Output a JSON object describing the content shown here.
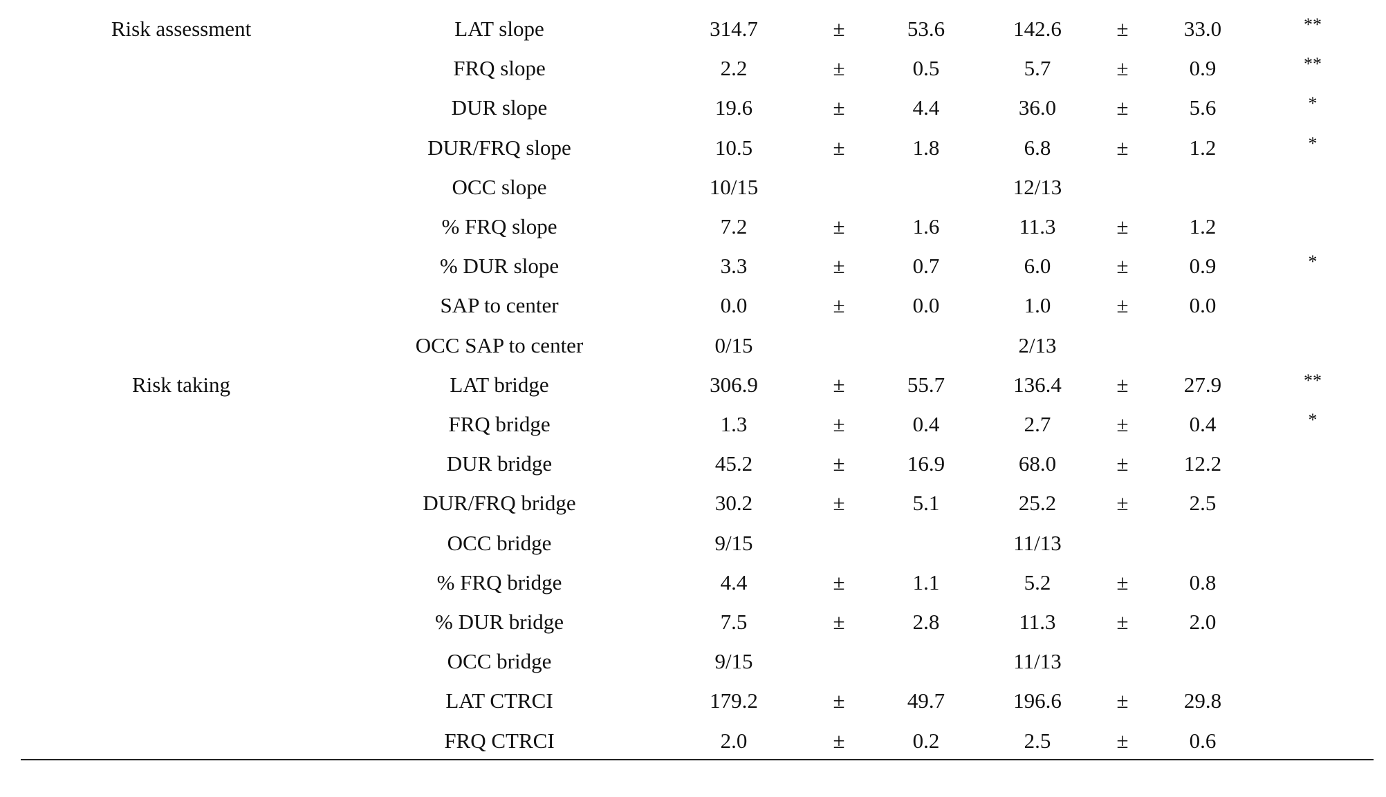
{
  "rows": [
    {
      "group": "Risk assessment",
      "measure": "LAT slope",
      "a": "314.7",
      "pm1": "±",
      "a_sd": "53.6",
      "b": "142.6",
      "pm2": "±",
      "b_sd": "33.0",
      "sig": "**"
    },
    {
      "group": "",
      "measure": "FRQ slope",
      "a": "2.2",
      "pm1": "±",
      "a_sd": "0.5",
      "b": "5.7",
      "pm2": "±",
      "b_sd": "0.9",
      "sig": "**"
    },
    {
      "group": "",
      "measure": "DUR slope",
      "a": "19.6",
      "pm1": "±",
      "a_sd": "4.4",
      "b": "36.0",
      "pm2": "±",
      "b_sd": "5.6",
      "sig": "*"
    },
    {
      "group": "",
      "measure": "DUR/FRQ slope",
      "a": "10.5",
      "pm1": "±",
      "a_sd": "1.8",
      "b": "6.8",
      "pm2": "±",
      "b_sd": "1.2",
      "sig": "*"
    },
    {
      "group": "",
      "measure": "OCC slope",
      "a": "10/15",
      "pm1": "",
      "a_sd": "",
      "b": "12/13",
      "pm2": "",
      "b_sd": "",
      "sig": ""
    },
    {
      "group": "",
      "measure": "% FRQ slope",
      "a": "7.2",
      "pm1": "±",
      "a_sd": "1.6",
      "b": "11.3",
      "pm2": "±",
      "b_sd": "1.2",
      "sig": ""
    },
    {
      "group": "",
      "measure": "% DUR slope",
      "a": "3.3",
      "pm1": "±",
      "a_sd": "0.7",
      "b": "6.0",
      "pm2": "±",
      "b_sd": "0.9",
      "sig": "*"
    },
    {
      "group": "",
      "measure": "SAP to center",
      "a": "0.0",
      "pm1": "±",
      "a_sd": "0.0",
      "b": "1.0",
      "pm2": "±",
      "b_sd": "0.0",
      "sig": ""
    },
    {
      "group": "",
      "measure": "OCC SAP to center",
      "a": "0/15",
      "pm1": "",
      "a_sd": "",
      "b": "2/13",
      "pm2": "",
      "b_sd": "",
      "sig": ""
    },
    {
      "group": "Risk taking",
      "measure": "LAT bridge",
      "a": "306.9",
      "pm1": "±",
      "a_sd": "55.7",
      "b": "136.4",
      "pm2": "±",
      "b_sd": "27.9",
      "sig": "**"
    },
    {
      "group": "",
      "measure": "FRQ bridge",
      "a": "1.3",
      "pm1": "±",
      "a_sd": "0.4",
      "b": "2.7",
      "pm2": "±",
      "b_sd": "0.4",
      "sig": "*"
    },
    {
      "group": "",
      "measure": "DUR bridge",
      "a": "45.2",
      "pm1": "±",
      "a_sd": "16.9",
      "b": "68.0",
      "pm2": "±",
      "b_sd": "12.2",
      "sig": ""
    },
    {
      "group": "",
      "measure": "DUR/FRQ bridge",
      "a": "30.2",
      "pm1": "±",
      "a_sd": "5.1",
      "b": "25.2",
      "pm2": "±",
      "b_sd": "2.5",
      "sig": ""
    },
    {
      "group": "",
      "measure": "OCC bridge",
      "a": "9/15",
      "pm1": "",
      "a_sd": "",
      "b": "11/13",
      "pm2": "",
      "b_sd": "",
      "sig": ""
    },
    {
      "group": "",
      "measure": "% FRQ bridge",
      "a": "4.4",
      "pm1": "±",
      "a_sd": "1.1",
      "b": "5.2",
      "pm2": "±",
      "b_sd": "0.8",
      "sig": ""
    },
    {
      "group": "",
      "measure": "% DUR bridge",
      "a": "7.5",
      "pm1": "±",
      "a_sd": "2.8",
      "b": "11.3",
      "pm2": "±",
      "b_sd": "2.0",
      "sig": ""
    },
    {
      "group": "",
      "measure": "OCC bridge",
      "a": "9/15",
      "pm1": "",
      "a_sd": "",
      "b": "11/13",
      "pm2": "",
      "b_sd": "",
      "sig": ""
    },
    {
      "group": "",
      "measure": "LAT CTRCI",
      "a": "179.2",
      "pm1": "±",
      "a_sd": "49.7",
      "b": "196.6",
      "pm2": "±",
      "b_sd": "29.8",
      "sig": ""
    },
    {
      "group": "",
      "measure": "FRQ CTRCI",
      "a": "2.0",
      "pm1": "±",
      "a_sd": "0.2",
      "b": "2.5",
      "pm2": "±",
      "b_sd": "0.6",
      "sig": ""
    }
  ]
}
